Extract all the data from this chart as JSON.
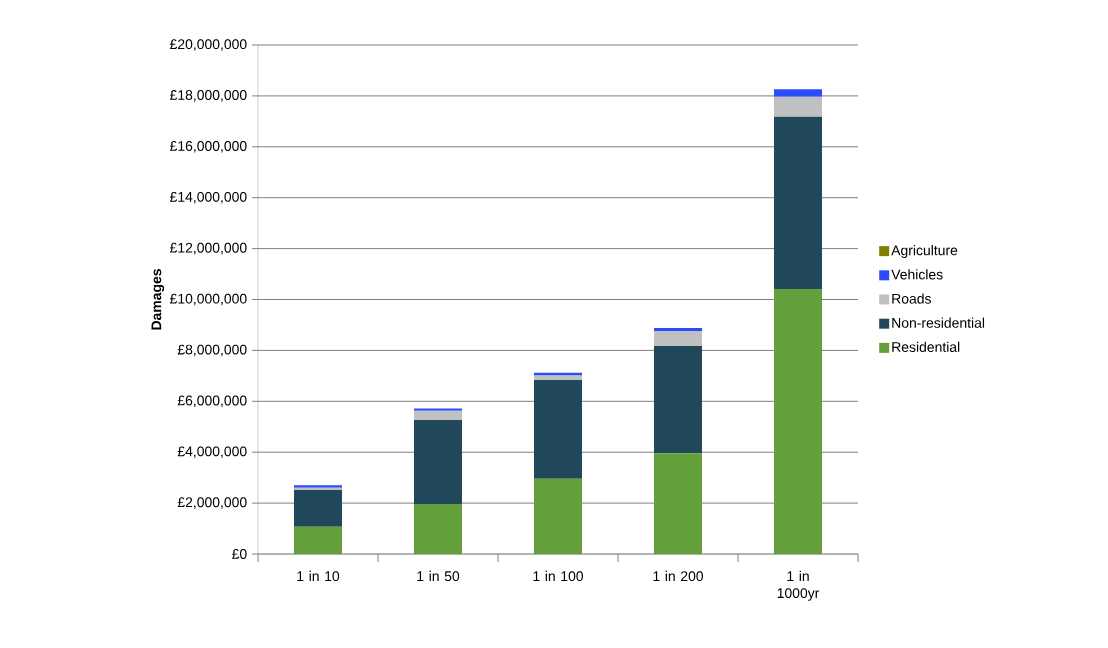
{
  "chart_data": {
    "type": "bar",
    "stacked": true,
    "ylabel": "Damages",
    "categories": [
      "1 in 10",
      "1 in 50",
      "1 in 100",
      "1 in 200",
      "1 in 1000yr"
    ],
    "series": [
      {
        "name": "Residential",
        "color": "#63a03c",
        "values": [
          1070000,
          1960000,
          2960000,
          3960000,
          10410000
        ]
      },
      {
        "name": "Non-residential",
        "color": "#21475a",
        "values": [
          1440000,
          3310000,
          3880000,
          4210000,
          6770000
        ]
      },
      {
        "name": "Roads",
        "color": "#c0c0c0",
        "values": [
          90000,
          360000,
          170000,
          590000,
          790000
        ]
      },
      {
        "name": "Vehicles",
        "color": "#2a4bff",
        "values": [
          100000,
          90000,
          110000,
          120000,
          290000
        ]
      },
      {
        "name": "Agriculture",
        "color": "#808000",
        "values": [
          0,
          0,
          0,
          0,
          0
        ]
      }
    ],
    "ylim": [
      0,
      20000000
    ],
    "yticks": [
      {
        "value": 0,
        "label": "£0"
      },
      {
        "value": 2000000,
        "label": "£2,000,000"
      },
      {
        "value": 4000000,
        "label": "£4,000,000"
      },
      {
        "value": 6000000,
        "label": "£6,000,000"
      },
      {
        "value": 8000000,
        "label": "£8,000,000"
      },
      {
        "value": 10000000,
        "label": "£10,000,000"
      },
      {
        "value": 12000000,
        "label": "£12,000,000"
      },
      {
        "value": 14000000,
        "label": "£14,000,000"
      },
      {
        "value": 16000000,
        "label": "£16,000,000"
      },
      {
        "value": 18000000,
        "label": "£18,000,000"
      },
      {
        "value": 20000000,
        "label": "£20,000,000"
      }
    ],
    "grid": "y",
    "legend": "right"
  }
}
